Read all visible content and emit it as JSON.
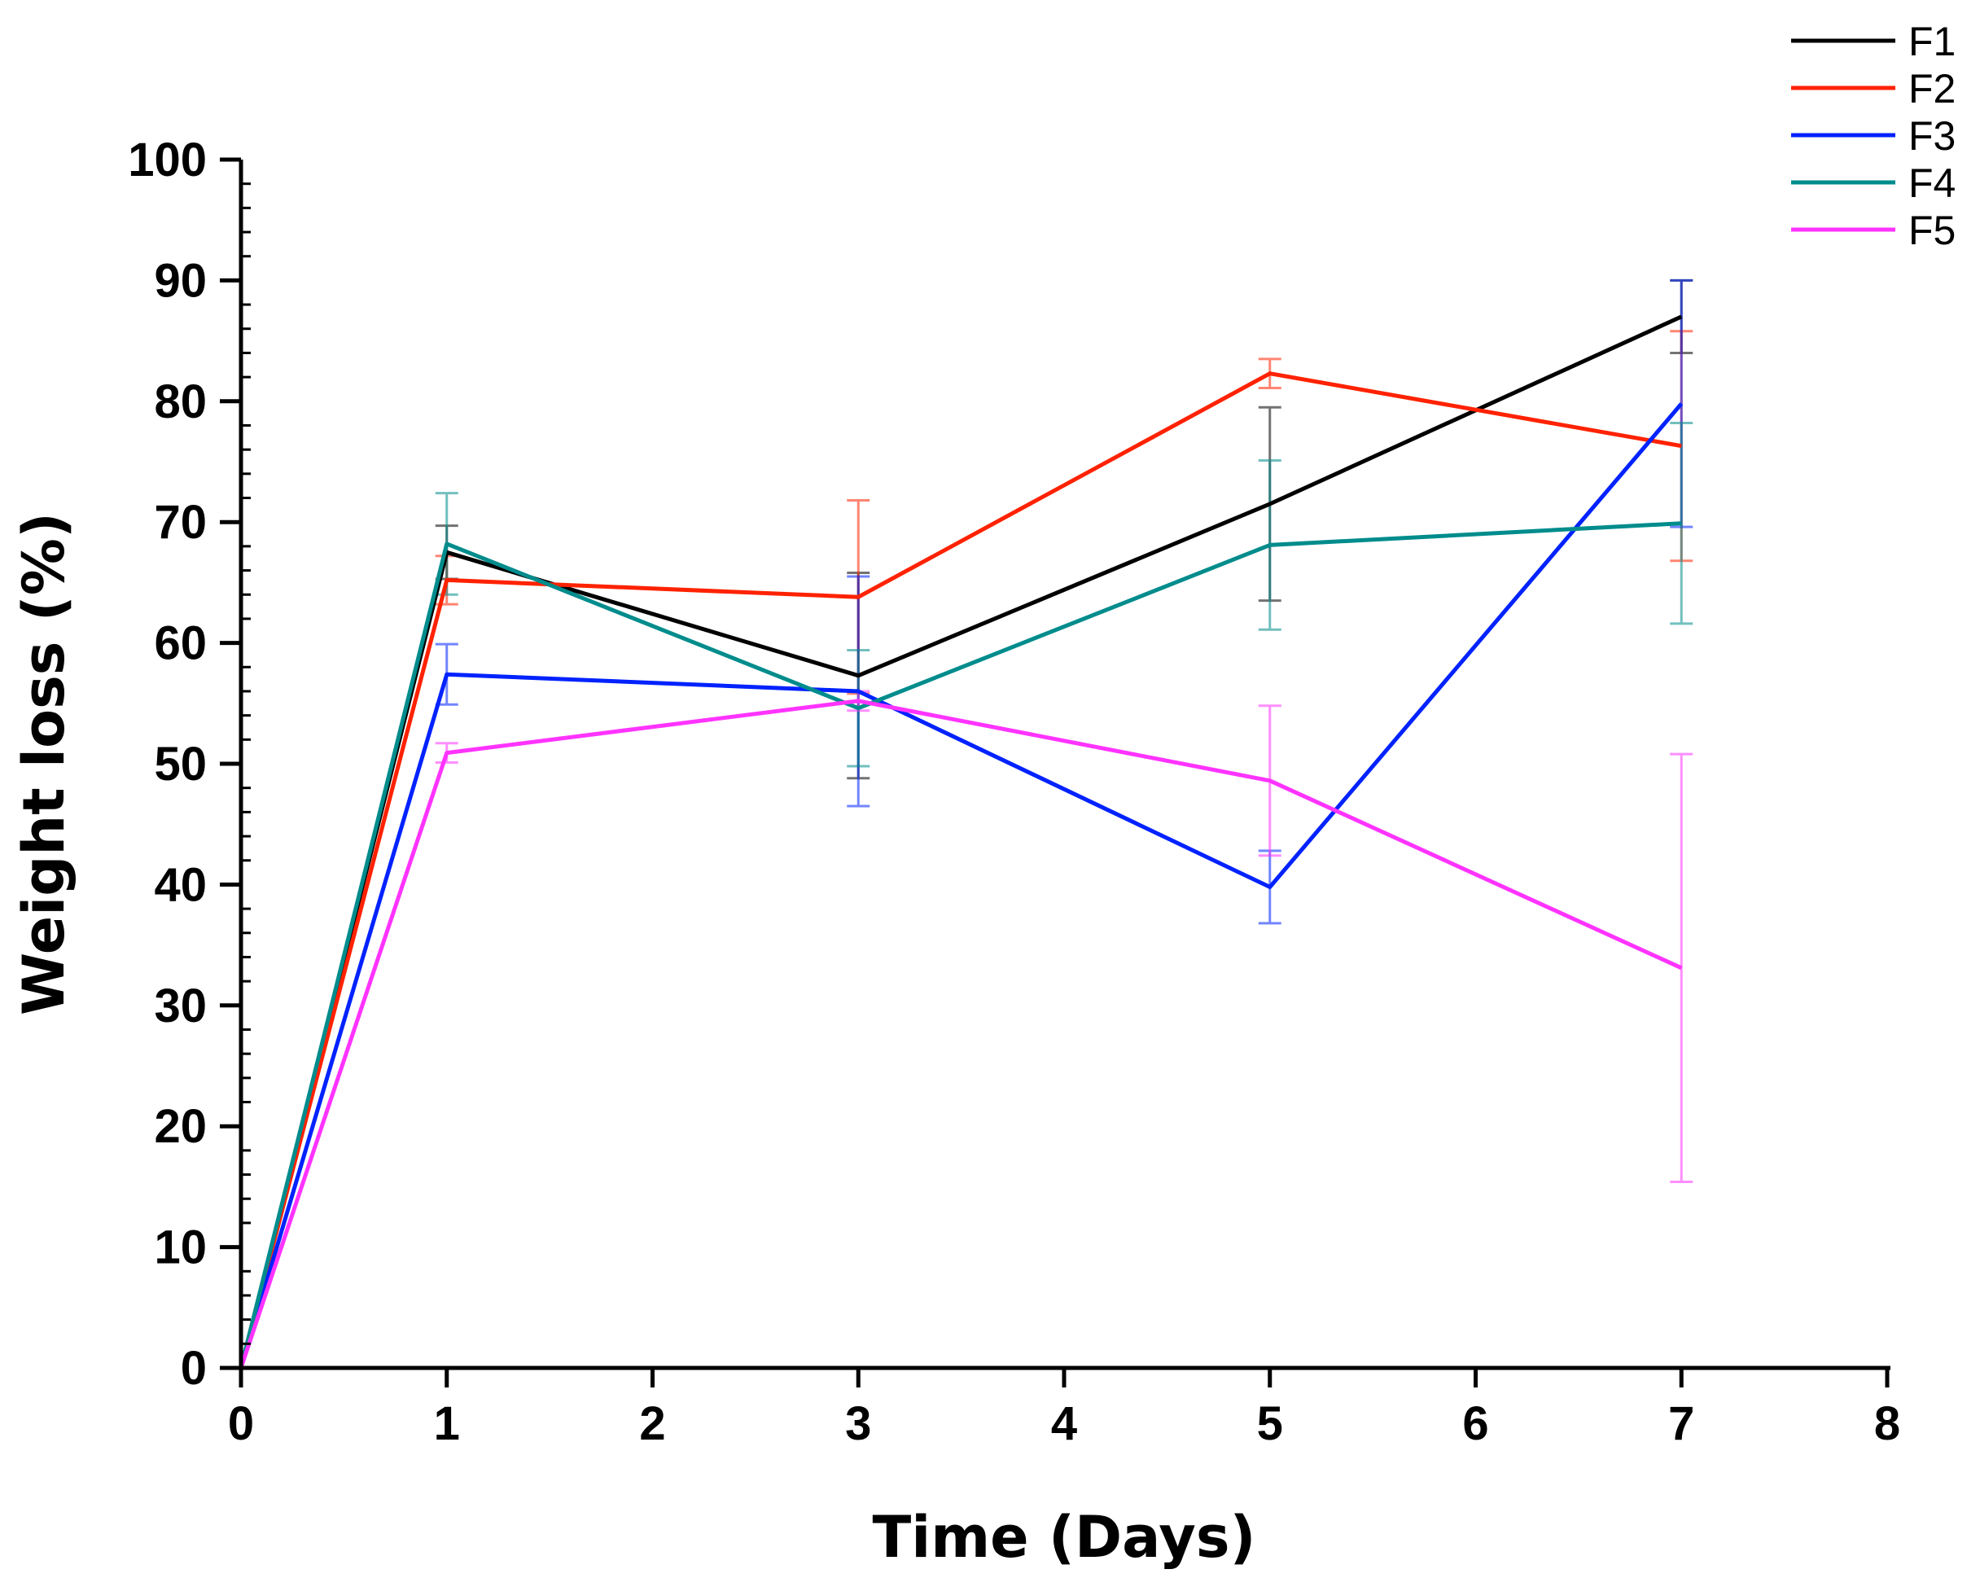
{
  "chart_data": {
    "type": "line",
    "title": "",
    "xlabel": "Time (Days)",
    "ylabel": "Weight loss (%)",
    "xlim": [
      0,
      8
    ],
    "ylim": [
      0,
      100
    ],
    "xticks": [
      0,
      1,
      2,
      3,
      4,
      5,
      6,
      7,
      8
    ],
    "yticks": [
      0,
      10,
      20,
      30,
      40,
      50,
      60,
      70,
      80,
      90,
      100
    ],
    "x": [
      0,
      1,
      3,
      5,
      7
    ],
    "legend_position": "top-right",
    "grid": false,
    "series": [
      {
        "name": "F1",
        "color": "#000000",
        "values": [
          0,
          67.5,
          57.3,
          71.5,
          87.0
        ],
        "errors": [
          0,
          2.2,
          8.5,
          8.0,
          3.0
        ]
      },
      {
        "name": "F2",
        "color": "#ff2200",
        "values": [
          0,
          65.2,
          63.8,
          82.3,
          76.3
        ],
        "errors": [
          0,
          2.0,
          8.0,
          1.2,
          9.5
        ]
      },
      {
        "name": "F3",
        "color": "#0022ff",
        "values": [
          0,
          57.4,
          56.0,
          39.8,
          79.8
        ],
        "errors": [
          0,
          2.5,
          9.5,
          3.0,
          10.2
        ]
      },
      {
        "name": "F4",
        "color": "#008c8c",
        "values": [
          0,
          68.2,
          54.6,
          68.1,
          69.9
        ],
        "errors": [
          0,
          4.2,
          4.8,
          7.0,
          8.3
        ]
      },
      {
        "name": "F5",
        "color": "#ff33ff",
        "values": [
          0,
          50.9,
          55.2,
          48.6,
          33.1
        ],
        "errors": [
          0,
          0.8,
          0.8,
          6.2,
          17.7
        ]
      }
    ]
  }
}
